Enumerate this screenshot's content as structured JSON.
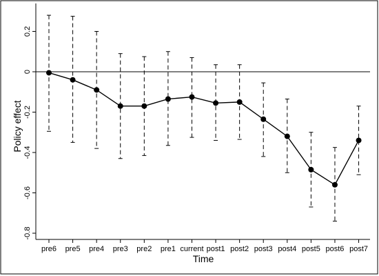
{
  "chart_data": {
    "type": "line",
    "title": "",
    "xlabel": "Time",
    "ylabel": "Policy effect",
    "categories": [
      "pre6",
      "pre5",
      "pre4",
      "pre3",
      "pre2",
      "pre1",
      "current",
      "post1",
      "post2",
      "post3",
      "post4",
      "post5",
      "post6",
      "post7"
    ],
    "series": [
      {
        "values": [
          -0.005,
          -0.04,
          -0.09,
          -0.17,
          -0.17,
          -0.135,
          -0.125,
          -0.155,
          -0.15,
          -0.235,
          -0.32,
          -0.485,
          -0.56,
          -0.34
        ],
        "ci_lower": [
          -0.295,
          -0.35,
          -0.38,
          -0.43,
          -0.415,
          -0.365,
          -0.325,
          -0.34,
          -0.335,
          -0.42,
          -0.5,
          -0.67,
          -0.74,
          -0.51
        ],
        "ci_upper": [
          0.28,
          0.275,
          0.2,
          0.09,
          0.075,
          0.1,
          0.07,
          0.035,
          0.035,
          -0.055,
          -0.135,
          -0.3,
          -0.375,
          -0.17
        ]
      }
    ],
    "ylim": [
      -0.85,
      0.3
    ],
    "yticks": [
      0.2,
      0,
      -0.2,
      -0.4,
      -0.6,
      -0.8
    ],
    "ytick_labels": [
      "0.2",
      "0",
      "-0.2",
      "-0.4",
      "-0.6",
      "-0.8"
    ],
    "reference_line": 0,
    "grid": false,
    "colors": {
      "line": "#000000",
      "frame": "#000000",
      "background": "#ffffff"
    }
  }
}
